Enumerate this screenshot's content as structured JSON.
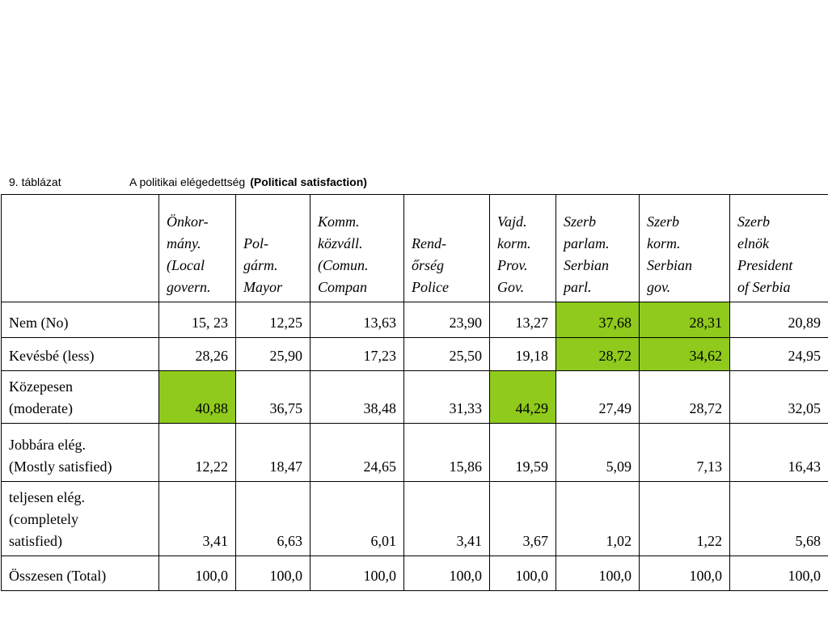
{
  "caption": {
    "number": "9. táblázat",
    "title": "A politikai elégedettség",
    "title_en": "(Political satisfaction)"
  },
  "table": {
    "headers": [
      "",
      "Önkor-\nmány.\n(Local\ngovern.",
      "Pol-\ngárm.\nMayor",
      "Komm.\nközváll.\n(Comun.\nCompan",
      "Rend-\nőrség\nPolice",
      "Vajd.\nkorm.\nProv.\nGov.",
      "Szerb\nparlam.\nSerbian\nparl.",
      "Szerb\nkorm.\nSerbian\ngov.",
      "Szerb\nelnök\nPresident\nof Serbia"
    ],
    "rows": [
      {
        "label": "Nem (No)",
        "values": [
          "15, 23",
          "12,25",
          "13,63",
          "23,90",
          "13,27",
          "37,68",
          "28,31",
          "20,89"
        ],
        "highlight": [
          5,
          6
        ]
      },
      {
        "label": "Kevésbé (less)",
        "values": [
          "28,26",
          "25,90",
          "17,23",
          "25,50",
          "19,18",
          "28,72",
          "34,62",
          "24,95"
        ],
        "highlight": [
          5,
          6
        ]
      },
      {
        "label": "Közepesen\n(moderate)",
        "values": [
          "40,88",
          "36,75",
          "38,48",
          "31,33",
          "44,29",
          "27,49",
          "28,72",
          "32,05"
        ],
        "highlight": [
          0,
          4
        ]
      },
      {
        "label": "Jobbára elég.\n(Mostly satisfied)",
        "values": [
          "12,22",
          "18,47",
          "24,65",
          "15,86",
          "19,59",
          "5,09",
          "7,13",
          "16,43"
        ],
        "highlight": []
      },
      {
        "label": "teljesen elég.\n(completely\nsatisfied)",
        "values": [
          "3,41",
          "6,63",
          "6,01",
          "3,41",
          "3,67",
          "1,02",
          "1,22",
          "5,68"
        ],
        "highlight": []
      },
      {
        "label": "Összesen (Total)",
        "values": [
          "100,0",
          "100,0",
          "100,0",
          "100,0",
          "100,0",
          "100,0",
          "100,0",
          "100,0"
        ],
        "highlight": []
      }
    ]
  },
  "colors": {
    "highlight": "#8fca1c"
  }
}
